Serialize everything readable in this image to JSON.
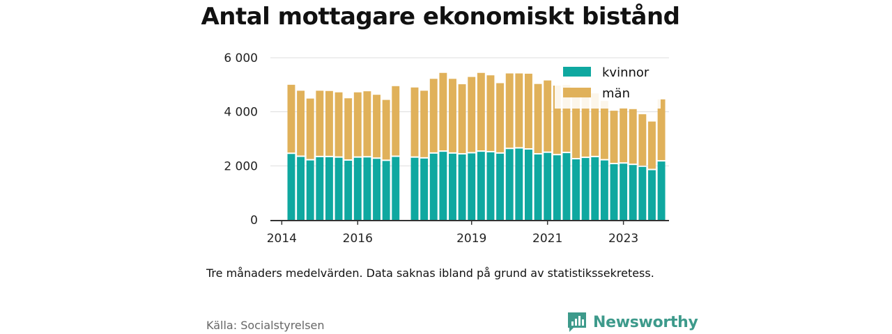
{
  "chart_data": {
    "type": "bar",
    "stacked": true,
    "title": "Antal mottagare ekonomiskt bistånd",
    "ylim": [
      0,
      6000
    ],
    "yticks": [
      0,
      2000,
      4000,
      6000
    ],
    "ytick_labels": [
      "0",
      "2 000",
      "4 000",
      "6 000"
    ],
    "xlim": [
      2013.7,
      2024.2
    ],
    "xticks": [
      2014,
      2016,
      2019,
      2021,
      2023
    ],
    "xtick_labels": [
      "2014",
      "2016",
      "2019",
      "2021",
      "2023"
    ],
    "grid": true,
    "legend_position": "top-right",
    "bar_width_years": 0.2,
    "x": [
      2014.25,
      2014.5,
      2014.75,
      2015.0,
      2015.25,
      2015.5,
      2015.75,
      2016.0,
      2016.25,
      2016.5,
      2016.75,
      2017.0,
      2017.5,
      2017.75,
      2018.0,
      2018.25,
      2018.5,
      2018.75,
      2019.0,
      2019.25,
      2019.5,
      2019.75,
      2020.0,
      2020.25,
      2020.5,
      2020.75,
      2021.0,
      2021.25,
      2021.5,
      2021.75,
      2022.0,
      2022.25,
      2022.5,
      2022.75,
      2023.0,
      2023.25,
      2023.5,
      2023.75,
      2024.0
    ],
    "series": [
      {
        "name": "kvinnor",
        "color": "#0fa8a0",
        "values": [
          2440,
          2330,
          2200,
          2320,
          2320,
          2300,
          2190,
          2300,
          2310,
          2260,
          2180,
          2330,
          2300,
          2270,
          2450,
          2520,
          2450,
          2420,
          2460,
          2520,
          2500,
          2450,
          2620,
          2640,
          2600,
          2420,
          2480,
          2390,
          2470,
          2240,
          2290,
          2320,
          2200,
          2060,
          2080,
          2030,
          1960,
          1840,
          2160
        ]
      },
      {
        "name": "män",
        "color": "#e0b15a",
        "values": [
          2560,
          2450,
          2290,
          2460,
          2450,
          2420,
          2310,
          2420,
          2450,
          2370,
          2260,
          2620,
          2600,
          2510,
          2770,
          2920,
          2770,
          2600,
          2830,
          2920,
          2850,
          2610,
          2800,
          2780,
          2810,
          2610,
          2680,
          2580,
          2520,
          2320,
          2350,
          2360,
          2200,
          1980,
          2070,
          2070,
          1950,
          1800,
          2300
        ]
      }
    ]
  },
  "note": "Tre månaders medelvärden. Data saknas ibland på grund av statistikssekretess.",
  "source": "Källa: Socialstyrelsen",
  "brand": {
    "name": "Newsworthy",
    "color": "#3d9a8b",
    "icon": "bar-chart-speech-bubble-icon"
  }
}
